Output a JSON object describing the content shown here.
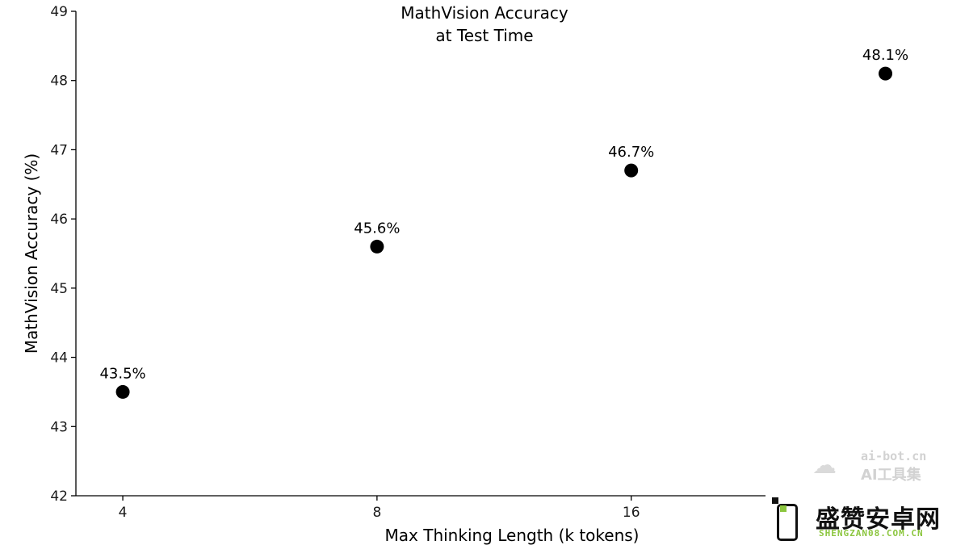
{
  "chart_data": {
    "type": "scatter",
    "title": [
      "MathVision Accuracy",
      "at Test Time"
    ],
    "xlabel": "Max Thinking Length (k tokens)",
    "ylabel": "MathVision Accuracy (%)",
    "x_ticks": [
      "4",
      "8",
      "16"
    ],
    "x_tick_values": [
      4,
      8,
      16
    ],
    "y_ticks": [
      "42",
      "43",
      "44",
      "45",
      "46",
      "47",
      "48",
      "49"
    ],
    "y_tick_values": [
      42,
      43,
      44,
      45,
      46,
      47,
      48,
      49
    ],
    "ylim": [
      42,
      49
    ],
    "x_scale": "log2",
    "xlim": [
      3.52,
      36.8
    ],
    "grid": false,
    "legend": "none",
    "point_color": "#000000",
    "points": [
      {
        "x": 4,
        "y": 43.5,
        "label": "43.5%"
      },
      {
        "x": 8,
        "y": 45.6,
        "label": "45.6%"
      },
      {
        "x": 16,
        "y": 46.7,
        "label": "46.7%"
      },
      {
        "x": 32,
        "y": 48.1,
        "label": "48.1%"
      }
    ]
  },
  "watermarks": {
    "ai_bot": {
      "icon": "cloud-icon",
      "line1": "ai-bot.cn",
      "line2": "AI工具集"
    },
    "shengzan": {
      "icon": "phone-icon",
      "name": "盛赞安卓网",
      "url": "SHENGZAN08.COM.CN",
      "accent": "#8cc63f"
    }
  }
}
